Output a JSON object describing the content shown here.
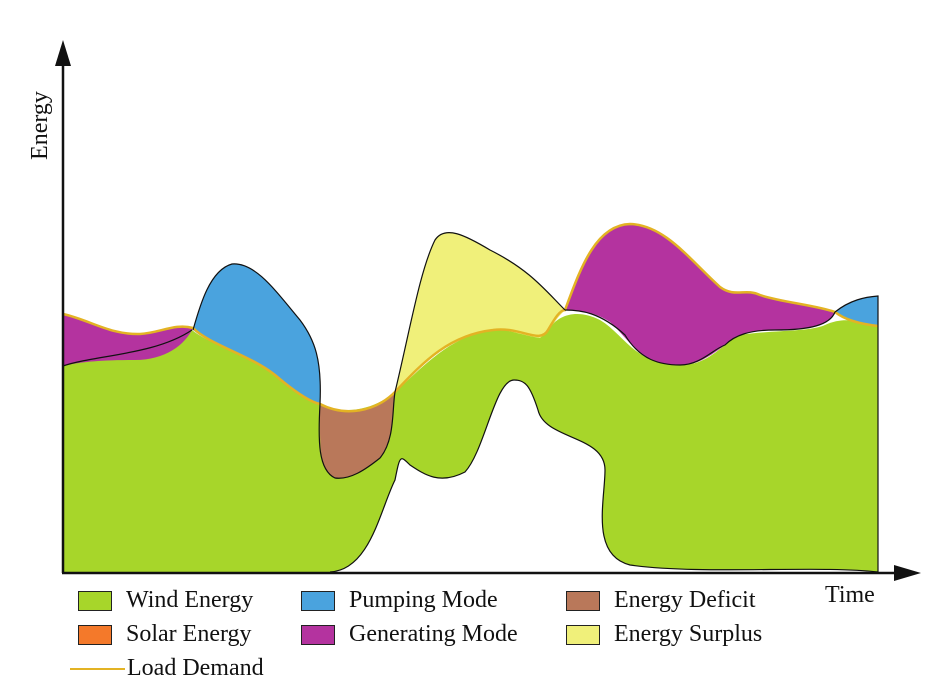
{
  "axes": {
    "y_label": "Energy",
    "x_label": "Time"
  },
  "legend": {
    "wind": {
      "label": "Wind Energy",
      "color": "#a7d62a"
    },
    "solar": {
      "label": "Solar Energy",
      "color": "#f4792a"
    },
    "pumping": {
      "label": "Pumping Mode",
      "color": "#4aa3de"
    },
    "generating": {
      "label": "Generating Mode",
      "color": "#b4339f"
    },
    "deficit": {
      "label": "Energy Deficit",
      "color": "#b9785a"
    },
    "surplus": {
      "label": "Energy Surplus",
      "color": "#f0f07a"
    },
    "load": {
      "label": "Load Demand",
      "color": "#e3b324"
    }
  }
}
